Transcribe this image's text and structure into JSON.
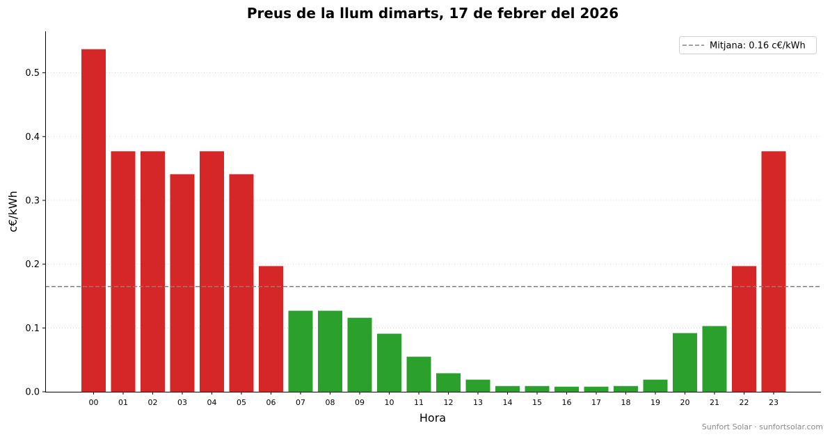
{
  "chart_data": {
    "type": "bar",
    "title": "Preus de la llum dimarts, 17 de febrer del 2026",
    "xlabel": "Hora",
    "ylabel": "c€/kWh",
    "categories": [
      "00",
      "01",
      "02",
      "03",
      "04",
      "05",
      "06",
      "07",
      "08",
      "09",
      "10",
      "11",
      "12",
      "13",
      "14",
      "15",
      "16",
      "17",
      "18",
      "19",
      "20",
      "21",
      "22",
      "23"
    ],
    "values": [
      0.537,
      0.377,
      0.377,
      0.341,
      0.377,
      0.341,
      0.197,
      0.127,
      0.127,
      0.116,
      0.091,
      0.055,
      0.029,
      0.019,
      0.009,
      0.009,
      0.008,
      0.008,
      0.009,
      0.019,
      0.092,
      0.103,
      0.197,
      0.377
    ],
    "ylim": [
      0,
      0.565
    ],
    "yticks": [
      "0.0",
      "0.1",
      "0.2",
      "0.3",
      "0.4",
      "0.5"
    ],
    "mean": 0.165,
    "legend": {
      "label": "Mitjana: 0.16 c€/kWh",
      "position": "top-right"
    },
    "colors": {
      "above_mean": "#d62728",
      "below_mean": "#2ca02c",
      "mean_line": "#808080"
    },
    "grid": "horizontal dotted",
    "watermark": "Sunfort Solar · sunfortsolar.com"
  }
}
